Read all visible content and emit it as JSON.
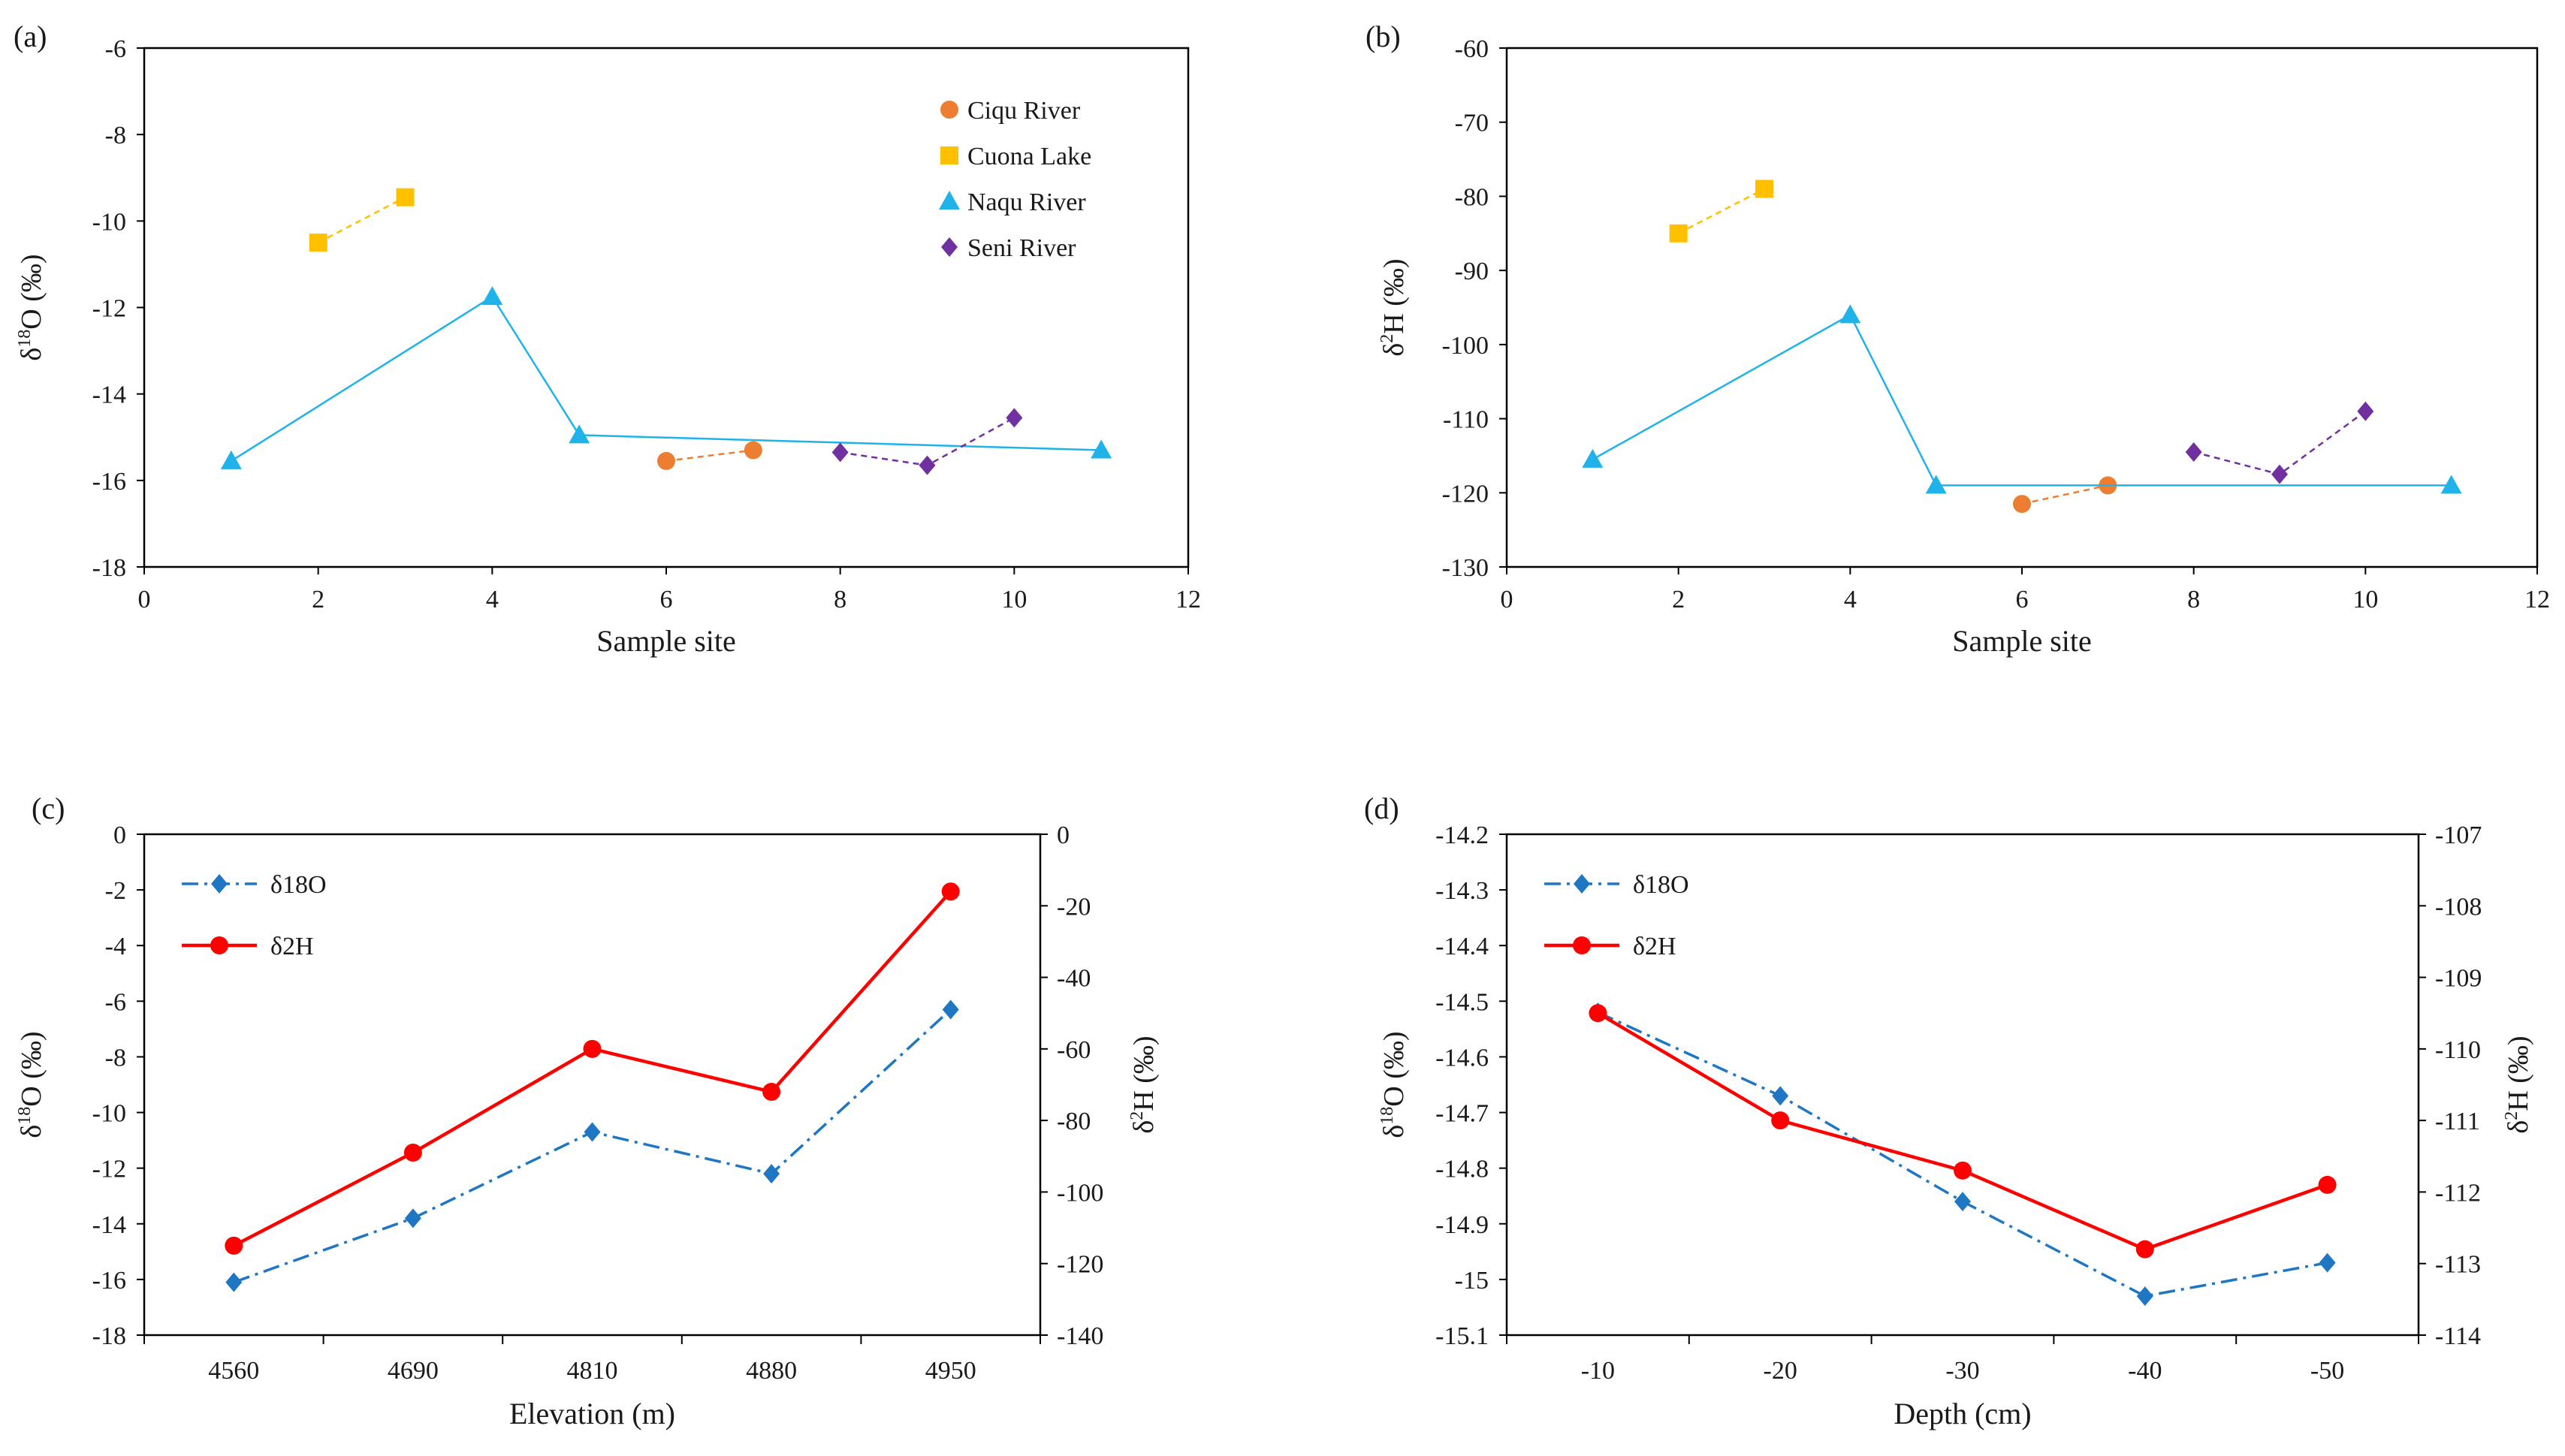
{
  "colors": {
    "ciqu": "#ED7D31",
    "cuona": "#FFC000",
    "naqu": "#1FB3EA",
    "seni": "#7030A0",
    "d18o": "#1F77C4",
    "d2h": "#FF0000"
  },
  "chart_data": [
    {
      "id": "a",
      "type": "line",
      "panel_label": "(a)",
      "title": "",
      "xlabel": "Sample site",
      "ylabel_main": "δ",
      "ylabel_sup": "18",
      "ylabel_rest": "O (‰)",
      "xlim": [
        0,
        12
      ],
      "ylim": [
        -18,
        -6
      ],
      "x_ticks": [
        "0",
        "2",
        "4",
        "6",
        "8",
        "10",
        "12"
      ],
      "y_ticks": [
        "-6",
        "-8",
        "-10",
        "-12",
        "-14",
        "-16",
        "-18"
      ],
      "legend_position": "top-right",
      "series": [
        {
          "name": "Ciqu River",
          "marker": "circle",
          "color_key": "ciqu",
          "dashed": true,
          "points": [
            [
              6,
              -15.55
            ],
            [
              7,
              -15.3
            ]
          ]
        },
        {
          "name": "Cuona Lake",
          "marker": "square",
          "color_key": "cuona",
          "dashed": true,
          "points": [
            [
              2,
              -10.5
            ],
            [
              3,
              -9.45
            ]
          ]
        },
        {
          "name": "Naqu River",
          "marker": "triangle",
          "color_key": "naqu",
          "dashed": false,
          "points": [
            [
              1,
              -15.55
            ],
            [
              4,
              -11.75
            ],
            [
              5,
              -14.95
            ],
            [
              11,
              -15.3
            ]
          ]
        },
        {
          "name": "Seni River",
          "marker": "diamond",
          "color_key": "seni",
          "dashed": true,
          "points": [
            [
              8,
              -15.35
            ],
            [
              9,
              -15.65
            ],
            [
              10,
              -14.55
            ]
          ]
        }
      ]
    },
    {
      "id": "b",
      "type": "line",
      "panel_label": "(b)",
      "title": "",
      "xlabel": "Sample site",
      "ylabel_main": "δ",
      "ylabel_sup": "2",
      "ylabel_rest": "H (‰)",
      "xlim": [
        0,
        12
      ],
      "ylim": [
        -130,
        -60
      ],
      "x_ticks": [
        "0",
        "2",
        "4",
        "6",
        "8",
        "10",
        "12"
      ],
      "y_ticks": [
        "-60",
        "-70",
        "-80",
        "-90",
        "-100",
        "-110",
        "-120",
        "-130"
      ],
      "series": [
        {
          "name": "Ciqu River",
          "marker": "circle",
          "color_key": "ciqu",
          "dashed": true,
          "points": [
            [
              6,
              -121.5
            ],
            [
              7,
              -119
            ]
          ]
        },
        {
          "name": "Cuona Lake",
          "marker": "square",
          "color_key": "cuona",
          "dashed": true,
          "points": [
            [
              2,
              -85
            ],
            [
              3,
              -79
            ]
          ]
        },
        {
          "name": "Naqu River",
          "marker": "triangle",
          "color_key": "naqu",
          "dashed": false,
          "points": [
            [
              1,
              -115.5
            ],
            [
              4,
              -96
            ],
            [
              5,
              -119
            ],
            [
              11,
              -119
            ]
          ]
        },
        {
          "name": "Seni River",
          "marker": "diamond",
          "color_key": "seni",
          "dashed": true,
          "points": [
            [
              8,
              -114.5
            ],
            [
              9,
              -117.5
            ],
            [
              10,
              -109
            ]
          ]
        }
      ]
    },
    {
      "id": "c",
      "type": "line",
      "panel_label": "(c)",
      "title": "",
      "xlabel": "Elevation (m)",
      "ylabel_main": "δ",
      "ylabel_sup": "18",
      "ylabel_rest": "O (‰)",
      "ylabel2_main": "δ",
      "ylabel2_sup": "2",
      "ylabel2_rest": "H (‰)",
      "categories": [
        "4560",
        "4690",
        "4810",
        "4880",
        "4950"
      ],
      "ylim": [
        -18,
        0
      ],
      "y2lim": [
        -140,
        0
      ],
      "y_ticks": [
        "0",
        "-2",
        "-4",
        "-6",
        "-8",
        "-10",
        "-12",
        "-14",
        "-16",
        "-18"
      ],
      "y2_ticks": [
        "0",
        "-20",
        "-40",
        "-60",
        "-80",
        "-100",
        "-120",
        "-140"
      ],
      "legend_position": "top-left",
      "series": [
        {
          "name": "δ18O",
          "axis": "left",
          "marker": "diamond",
          "color_key": "d18o",
          "style": "dashdot",
          "values": [
            -16.1,
            -13.8,
            -10.7,
            -12.2,
            -6.3
          ]
        },
        {
          "name": "δ2H",
          "axis": "right",
          "marker": "circle",
          "color_key": "d2h",
          "style": "solid",
          "values": [
            -115,
            -89,
            -60,
            -72,
            -16
          ]
        }
      ]
    },
    {
      "id": "d",
      "type": "line",
      "panel_label": "(d)",
      "title": "",
      "xlabel": "Depth (cm)",
      "ylabel_main": "δ",
      "ylabel_sup": "18",
      "ylabel_rest": "O (‰)",
      "ylabel2_main": "δ",
      "ylabel2_sup": "2",
      "ylabel2_rest": "H (‰)",
      "categories": [
        "-10",
        "-20",
        "-30",
        "-40",
        "-50"
      ],
      "ylim": [
        -15.1,
        -14.2
      ],
      "y2lim": [
        -114,
        -107
      ],
      "y_ticks": [
        "-14.2",
        "-14.3",
        "-14.4",
        "-14.5",
        "-14.6",
        "-14.7",
        "-14.8",
        "-14.9",
        "-15",
        "-15.1"
      ],
      "y2_ticks": [
        "-107",
        "-108",
        "-109",
        "-110",
        "-111",
        "-112",
        "-113",
        "-114"
      ],
      "legend_position": "top-left",
      "series": [
        {
          "name": "δ18O",
          "axis": "left",
          "marker": "diamond",
          "color_key": "d18o",
          "style": "dashdot",
          "values": [
            -14.52,
            -14.67,
            -14.86,
            -15.03,
            -14.97
          ]
        },
        {
          "name": "δ2H",
          "axis": "right",
          "marker": "circle",
          "color_key": "d2h",
          "style": "solid",
          "values": [
            -109.5,
            -111,
            -111.7,
            -112.8,
            -111.9
          ]
        }
      ]
    }
  ]
}
